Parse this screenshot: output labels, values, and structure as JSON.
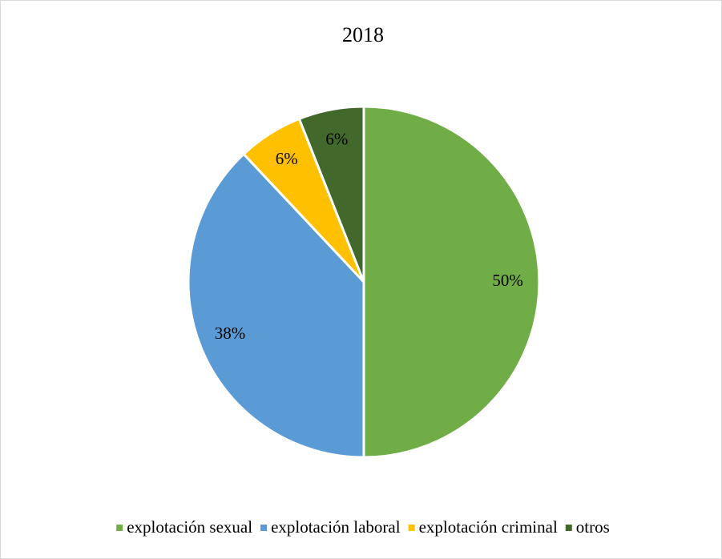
{
  "chart_data": {
    "type": "pie",
    "title": "2018",
    "categories": [
      "explotación sexual",
      "explotación laboral",
      "explotación criminal",
      "otros"
    ],
    "values": [
      50,
      38,
      6,
      6
    ],
    "value_labels": [
      "50%",
      "38%",
      "6%",
      "6%"
    ],
    "colors": [
      "#70ad47",
      "#5b9bd5",
      "#ffc000",
      "#43682b"
    ],
    "legend": "bottom"
  }
}
